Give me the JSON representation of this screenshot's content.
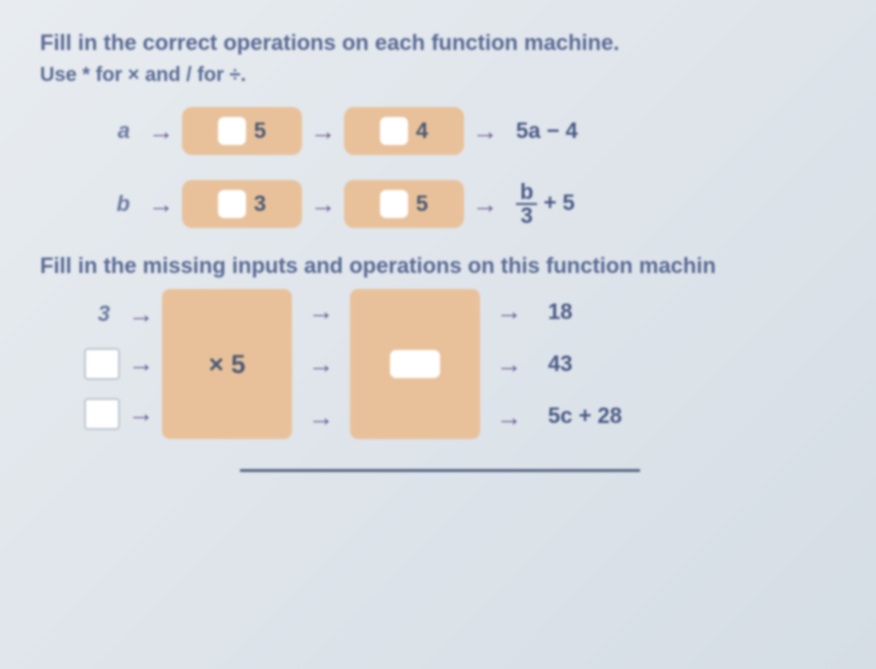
{
  "instruction1": "Fill in the correct operations on each function machine.",
  "instruction2": "Use * for × and / for ÷.",
  "machine1": {
    "input": "a",
    "box1_value": "5",
    "box2_value": "4",
    "output": "5a − 4"
  },
  "machine2": {
    "input": "b",
    "box1_value": "3",
    "box2_value": "5",
    "output_frac_num": "b",
    "output_frac_den": "3",
    "output_rest": " + 5"
  },
  "instruction3": "Fill in the missing inputs and operations on this function machin",
  "big_machine": {
    "input1": "3",
    "box1_label": "× 5",
    "output1": "18",
    "output2": "43",
    "output3": "5c + 28"
  },
  "colors": {
    "box_bg": "#e8c19a",
    "text": "#4a5a85",
    "arrow": "#6a5a90",
    "blank_bg": "#ffffff"
  }
}
